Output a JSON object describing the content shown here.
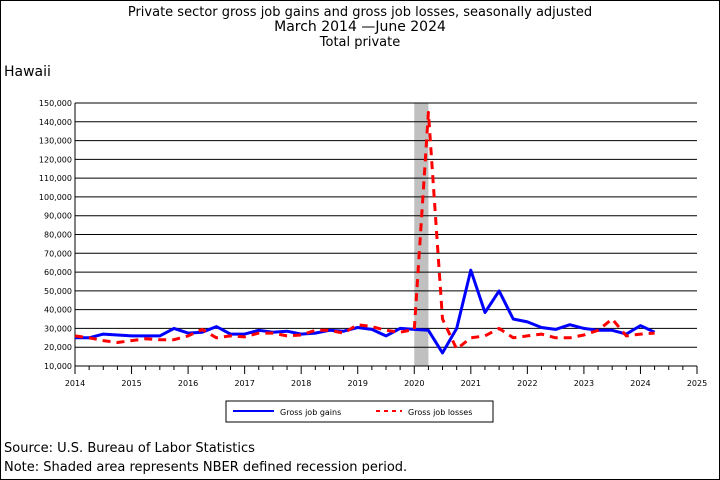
{
  "chart_data": {
    "type": "line",
    "title": "Private sector gross job gains and gross job losses, seasonally adjusted",
    "subtitle": "March 2014 —June 2024",
    "series_label": "Total private",
    "region": "Hawaii",
    "x_ticks": [
      "2014",
      "2015",
      "2016",
      "2017",
      "2018",
      "2019",
      "2020",
      "2021",
      "2022",
      "2023",
      "2024",
      "2025"
    ],
    "xlim": [
      2014,
      2025
    ],
    "y_ticks": [
      "10,000",
      "20,000",
      "30,000",
      "40,000",
      "50,000",
      "60,000",
      "70,000",
      "80,000",
      "90,000",
      "100,000",
      "110,000",
      "120,000",
      "130,000",
      "140,000",
      "150,000"
    ],
    "ylim": [
      10000,
      150000
    ],
    "grid": true,
    "recession_shading": [
      2020.0,
      2020.25
    ],
    "legend": {
      "placement": "bottom-center"
    },
    "x": [
      2014.0,
      2014.25,
      2014.5,
      2014.75,
      2015.0,
      2015.25,
      2015.5,
      2015.75,
      2016.0,
      2016.25,
      2016.5,
      2016.75,
      2017.0,
      2017.25,
      2017.5,
      2017.75,
      2018.0,
      2018.25,
      2018.5,
      2018.75,
      2019.0,
      2019.25,
      2019.5,
      2019.75,
      2020.0,
      2020.25,
      2020.5,
      2020.75,
      2021.0,
      2021.25,
      2021.5,
      2021.75,
      2022.0,
      2022.25,
      2022.5,
      2022.75,
      2023.0,
      2023.25,
      2023.5,
      2023.75,
      2024.0,
      2024.25
    ],
    "series": [
      {
        "name": "Gross job gains",
        "color": "#0000ff",
        "dash": "solid",
        "values": [
          25000,
          25000,
          27000,
          26500,
          26000,
          26000,
          26000,
          30000,
          27500,
          28000,
          31000,
          27000,
          27000,
          29000,
          28000,
          28500,
          27000,
          27500,
          29000,
          28500,
          30500,
          29500,
          26000,
          30000,
          29500,
          29000,
          17000,
          30000,
          61000,
          38500,
          50000,
          35000,
          33500,
          30500,
          29500,
          32000,
          30000,
          29000,
          29000,
          27000,
          31500,
          28000
        ]
      },
      {
        "name": "Gross job losses",
        "color": "#ff0000",
        "dash": "dashed",
        "values": [
          26000,
          25000,
          23500,
          22500,
          23500,
          24500,
          24000,
          24000,
          26000,
          29500,
          25000,
          26000,
          25500,
          27500,
          27500,
          26000,
          26500,
          29000,
          29000,
          27500,
          32000,
          31000,
          29000,
          28000,
          29500,
          145000,
          35000,
          19000,
          25000,
          26000,
          30000,
          25000,
          26000,
          27000,
          25000,
          25000,
          26500,
          29000,
          35000,
          26000,
          27000,
          27500
        ]
      }
    ],
    "source": "Source: U.S. Bureau of Labor Statistics",
    "note": "Note: Shaded area represents NBER defined recession period."
  },
  "colors": {
    "gains": "#0000ff",
    "losses": "#ff0000",
    "recession": "#c0c0c0",
    "grid": "#000000"
  }
}
